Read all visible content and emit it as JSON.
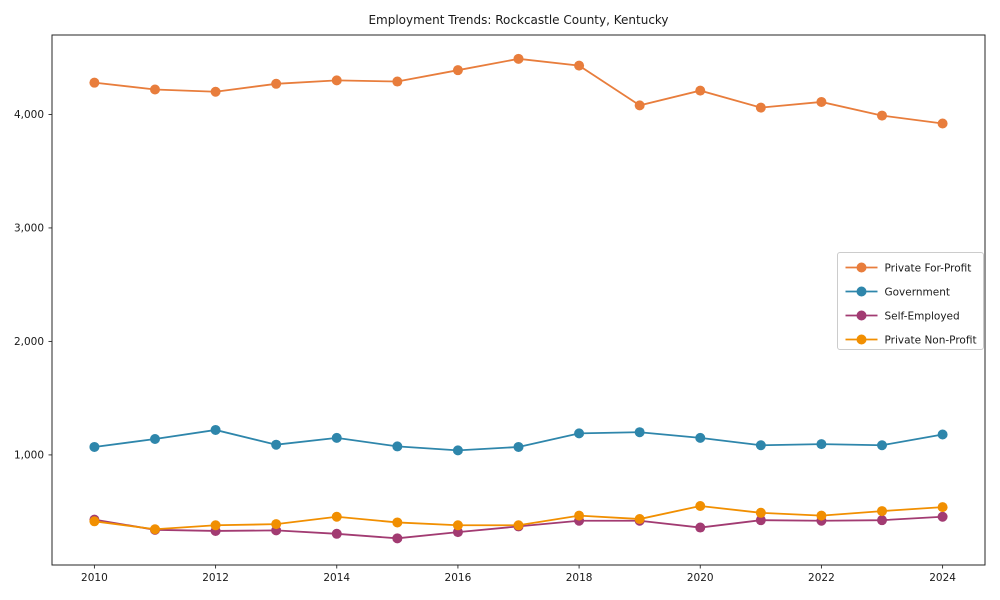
{
  "chart_data": {
    "type": "line",
    "title": "Employment Trends: Rockcastle County, Kentucky",
    "xlabel": "",
    "ylabel": "",
    "grid": false,
    "x": [
      2010,
      2011,
      2012,
      2013,
      2014,
      2015,
      2016,
      2017,
      2018,
      2019,
      2020,
      2021,
      2022,
      2023,
      2024
    ],
    "x_ticks": [
      2010,
      2012,
      2014,
      2016,
      2018,
      2020,
      2022,
      2024
    ],
    "y_ticks": [
      1000,
      2000,
      3000,
      4000
    ],
    "xlim": [
      2009.3,
      2024.7
    ],
    "ylim": [
      30,
      4700
    ],
    "legend": {
      "position": "right-middle",
      "entries": [
        "Private For-Profit",
        "Government",
        "Self-Employed",
        "Private Non-Profit"
      ]
    },
    "series": [
      {
        "name": "Private For-Profit",
        "color": "#E87D3C",
        "values": [
          4280,
          4220,
          4200,
          4270,
          4300,
          4290,
          4390,
          4490,
          4430,
          4080,
          4210,
          4060,
          4110,
          3990,
          3920
        ]
      },
      {
        "name": "Government",
        "color": "#2E86AB",
        "values": [
          1070,
          1140,
          1220,
          1090,
          1150,
          1075,
          1040,
          1070,
          1190,
          1200,
          1150,
          1085,
          1095,
          1085,
          1180
        ]
      },
      {
        "name": "Self-Employed",
        "color": "#A23B72",
        "values": [
          430,
          340,
          330,
          335,
          305,
          265,
          320,
          370,
          420,
          420,
          360,
          425,
          420,
          425,
          455
        ]
      },
      {
        "name": "Private Non-Profit",
        "color": "#F18F01",
        "values": [
          415,
          345,
          380,
          390,
          455,
          405,
          380,
          380,
          465,
          435,
          550,
          490,
          465,
          505,
          540
        ]
      }
    ],
    "style": {
      "spine_color": "#262626",
      "text_color": "#1a1a1a",
      "legend_border_color": "#cccccc",
      "background_color": "#ffffff",
      "marker_radius": 5,
      "line_width": 1.8
    }
  }
}
